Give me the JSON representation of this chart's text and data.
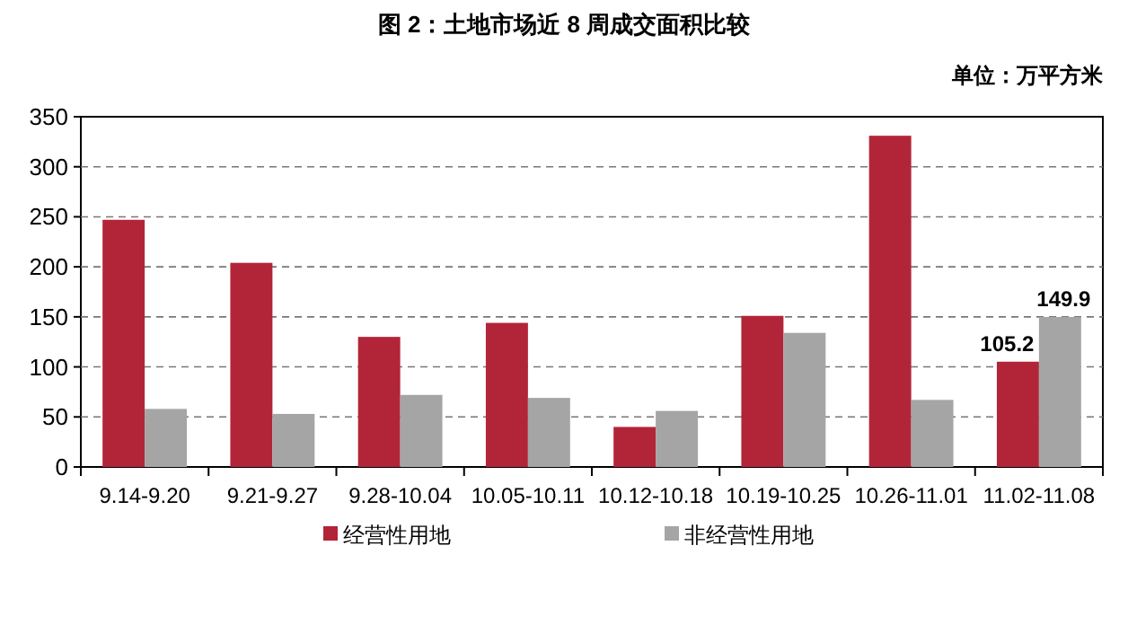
{
  "chart_data": {
    "type": "bar",
    "title": "图 2：土地市场近 8 周成交面积比较",
    "subtitle": "单位：万平方米",
    "categories": [
      "9.14-9.20",
      "9.21-9.27",
      "9.28-10.04",
      "10.05-10.11",
      "10.12-10.18",
      "10.19-10.25",
      "10.26-11.01",
      "11.02-11.08"
    ],
    "series": [
      {
        "name": "经营性用地",
        "color": "#b22538",
        "values": [
          247,
          204,
          130,
          144,
          40,
          151,
          331,
          105.2
        ],
        "value_labels": [
          null,
          null,
          null,
          null,
          null,
          null,
          null,
          "105.2"
        ]
      },
      {
        "name": "非经营性用地",
        "color": "#a5a5a5",
        "values": [
          58,
          53,
          72,
          69,
          56,
          134,
          67,
          149.9
        ],
        "value_labels": [
          null,
          null,
          null,
          null,
          null,
          null,
          null,
          "149.9"
        ]
      }
    ],
    "ylim": [
      0,
      350
    ],
    "yticks": [
      0,
      50,
      100,
      150,
      200,
      250,
      300,
      350
    ],
    "grid": "y",
    "legend": "bottom"
  }
}
